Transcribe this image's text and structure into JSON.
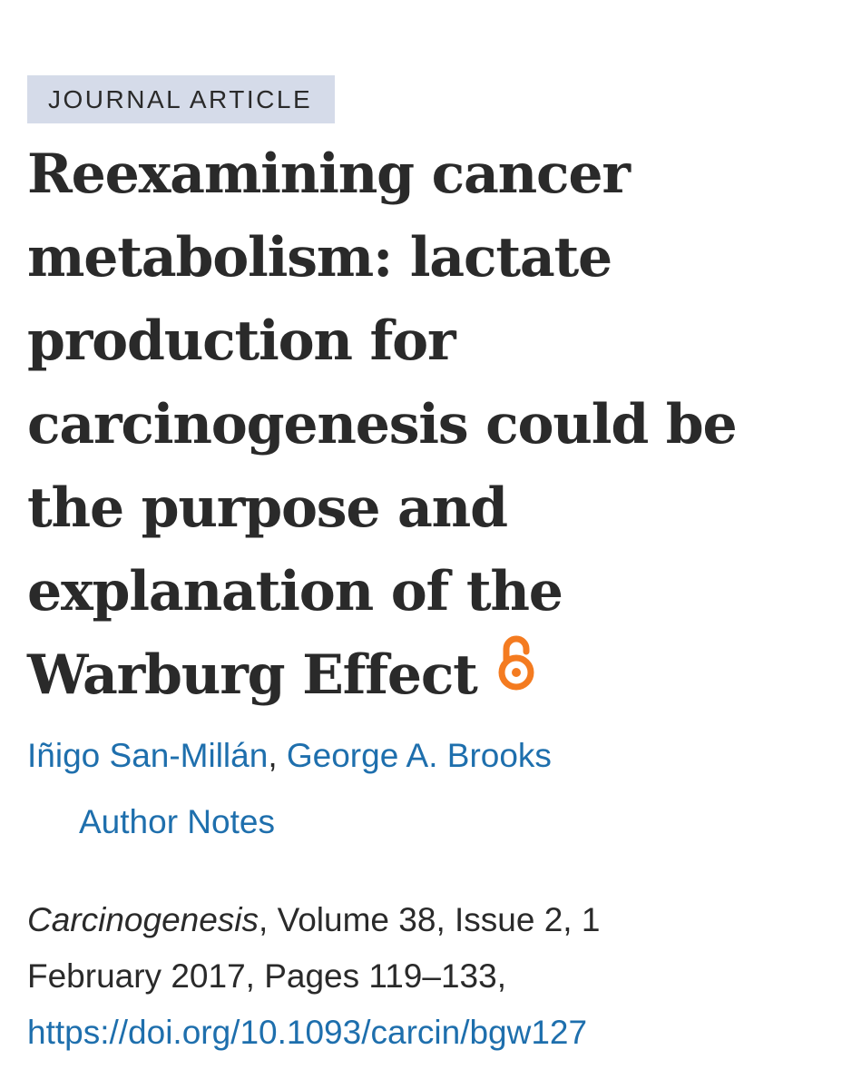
{
  "article": {
    "type_label": "JOURNAL ARTICLE",
    "title_lines": [
      "Reexamining cancer",
      "metabolism: lactate",
      "production for",
      "carcinogenesis could be",
      "the purpose and",
      "explanation of the",
      "Warburg Effect"
    ],
    "open_access_icon": "open-access-lock-icon",
    "authors": [
      "Iñigo San-Millán",
      "George A. Brooks"
    ],
    "author_separator": ", ",
    "author_notes_label": "Author Notes",
    "citation": {
      "journal": "Carcinogenesis",
      "line1_rest": ", Volume 38, Issue 2, 1",
      "line2": "February 2017, Pages 119–133,",
      "doi": "https://doi.org/10.1093/carcin/bgw127"
    }
  },
  "colors": {
    "text": "#2a2a2a",
    "link": "#1e6fad",
    "badge_bg": "#d5dbe9",
    "open_access": "#f47b20"
  }
}
